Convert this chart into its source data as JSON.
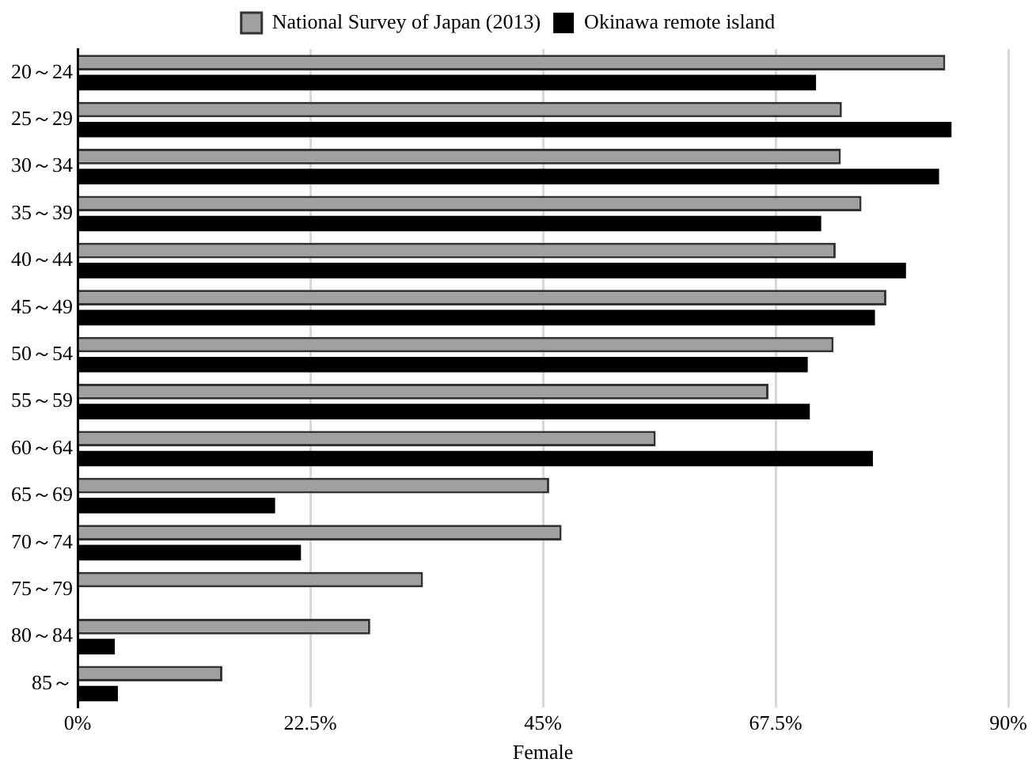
{
  "chart_data": {
    "type": "bar",
    "orientation": "horizontal",
    "xlabel": "Female",
    "categories": [
      "20～24",
      "25～29",
      "30～34",
      "35～39",
      "40～44",
      "45～49",
      "50～54",
      "55～59",
      "60～64",
      "65～69",
      "70～74",
      "75～79",
      "80～84",
      "85～"
    ],
    "series": [
      {
        "name": "National Survey of Japan (2013)",
        "color": "#a0a0a0",
        "values": [
          83.9,
          73.9,
          73.8,
          75.8,
          73.3,
          78.2,
          73.1,
          66.8,
          55.9,
          45.6,
          46.8,
          33.4,
          28.3,
          14.0
        ]
      },
      {
        "name": "Okinawa remote island",
        "color": "#000000",
        "values": [
          71.4,
          84.5,
          83.3,
          71.9,
          80.1,
          77.1,
          70.6,
          70.8,
          76.9,
          19.1,
          21.6,
          null,
          3.6,
          3.9
        ]
      }
    ],
    "xlim": [
      0,
      90
    ],
    "xticks": [
      {
        "value": 0,
        "label": "0%"
      },
      {
        "value": 22.5,
        "label": "22.5%"
      },
      {
        "value": 45,
        "label": "45%"
      },
      {
        "value": 67.5,
        "label": "67.5%"
      },
      {
        "value": 90,
        "label": "90%"
      }
    ],
    "grid": "x",
    "legend": "top"
  }
}
